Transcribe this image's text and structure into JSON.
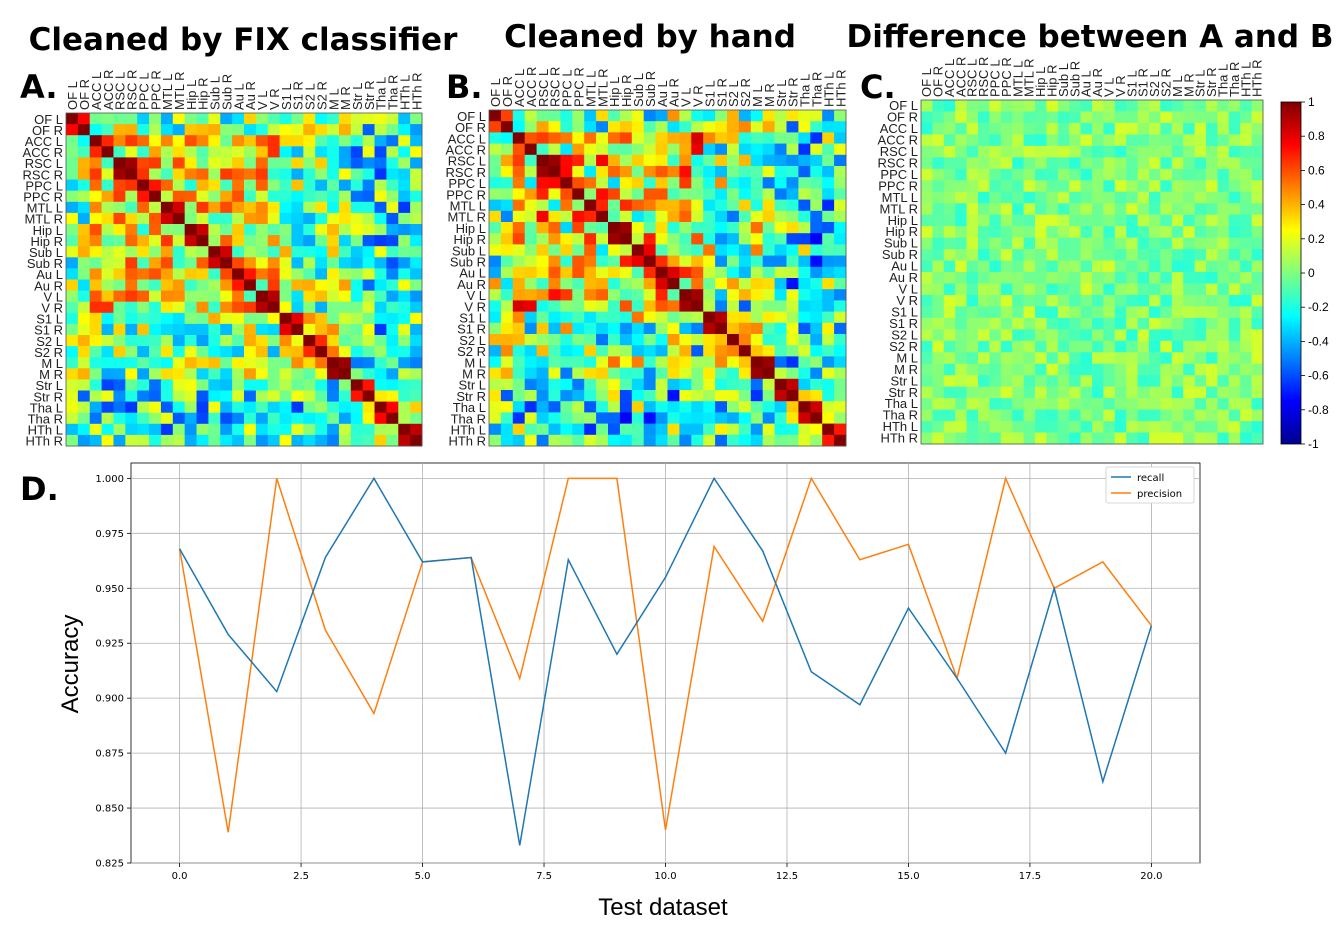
{
  "chart_data": [
    {
      "panel": "A.",
      "type": "heatmap",
      "title": "Cleaned by FIX classifier",
      "row_labels": [
        "OF L",
        "OF R",
        "ACC L",
        "ACC R",
        "RSC L",
        "RSC R",
        "PPC L",
        "PPC R",
        "MTL L",
        "MTL R",
        "Hip L",
        "Hip R",
        "Sub L",
        "Sub R",
        "Au L",
        "Au R",
        "V L",
        "V R",
        "S1 L",
        "S1 R",
        "S2 L",
        "S2 R",
        "M L",
        "M R",
        "Str L",
        "Str R",
        "Tha L",
        "Tha R",
        "HTh L",
        "HTh R"
      ],
      "col_labels": [
        "OF L",
        "OF R",
        "ACC L",
        "ACC R",
        "RSC L",
        "RSC R",
        "PPC L",
        "PPC R",
        "MTL L",
        "MTL R",
        "Hip L",
        "Hip R",
        "Sub L",
        "Sub R",
        "Au L",
        "Au R",
        "V L",
        "V R",
        "S1 L",
        "S1 R",
        "S2 L",
        "S2 R",
        "M L",
        "M R",
        "Str L",
        "Str R",
        "Tha L",
        "Tha R",
        "HTh L",
        "HTh R"
      ],
      "value_range": [
        -1,
        1
      ],
      "colormap": "jet"
    },
    {
      "panel": "B.",
      "type": "heatmap",
      "title": "Cleaned by hand",
      "row_labels": [
        "OF L",
        "OF R",
        "ACC L",
        "ACC R",
        "RSC L",
        "RSC R",
        "PPC L",
        "PPC R",
        "MTL L",
        "MTL R",
        "Hip L",
        "Hip R",
        "Sub L",
        "Sub R",
        "Au L",
        "Au R",
        "V L",
        "V R",
        "S1 L",
        "S1 R",
        "S2 L",
        "S2 R",
        "M L",
        "M R",
        "Str L",
        "Str R",
        "Tha L",
        "Tha R",
        "HTh L",
        "HTh R"
      ],
      "col_labels": [
        "OF L",
        "OF R",
        "ACC L",
        "ACC R",
        "RSC L",
        "RSC R",
        "PPC L",
        "PPC R",
        "MTL L",
        "MTL R",
        "Hip L",
        "Hip R",
        "Sub L",
        "Sub R",
        "Au L",
        "Au R",
        "V L",
        "V R",
        "S1 L",
        "S1 R",
        "S2 L",
        "S2 R",
        "M L",
        "M R",
        "Str L",
        "Str R",
        "Tha L",
        "Tha R",
        "HTh L",
        "HTh R"
      ],
      "value_range": [
        -1,
        1
      ],
      "colormap": "jet"
    },
    {
      "panel": "C.",
      "type": "heatmap",
      "title": "Difference between A and B",
      "row_labels": [
        "OF L",
        "OF R",
        "ACC L",
        "ACC R",
        "RSC L",
        "RSC R",
        "PPC L",
        "PPC R",
        "MTL L",
        "MTL R",
        "Hip L",
        "Hip R",
        "Sub L",
        "Sub R",
        "Au L",
        "Au R",
        "V L",
        "V R",
        "S1 L",
        "S1 R",
        "S2 L",
        "S2 R",
        "M L",
        "M R",
        "Str L",
        "Str R",
        "Tha L",
        "Tha R",
        "HTh L",
        "HTh R"
      ],
      "col_labels": [
        "OF L",
        "OF R",
        "ACC L",
        "ACC R",
        "RSC L",
        "RSC R",
        "PPC L",
        "PPC R",
        "MTL L",
        "MTL R",
        "Hip L",
        "Hip R",
        "Sub L",
        "Sub R",
        "Au L",
        "Au R",
        "V L",
        "V R",
        "S1 L",
        "S1 R",
        "S2 L",
        "S2 R",
        "M L",
        "M R",
        "Str L",
        "Str R",
        "Tha L",
        "Tha R",
        "HTh L",
        "HTh R"
      ],
      "value_range": [
        -1,
        1
      ],
      "colormap": "jet",
      "colorbar_ticks": [
        "1",
        "0.8",
        "0.6",
        "0.4",
        "0.2",
        "0",
        "-0.2",
        "-0.4",
        "-0.6",
        "-0.8",
        "-1"
      ]
    },
    {
      "panel": "D.",
      "type": "line",
      "title": "",
      "xlabel": "Test dataset",
      "ylabel": "Accuracy",
      "xlim": [
        -1,
        21
      ],
      "ylim": [
        0.825,
        1.007
      ],
      "xticks": [
        0.0,
        2.5,
        5.0,
        7.5,
        10.0,
        12.5,
        15.0,
        17.5,
        20.0
      ],
      "xtick_labels": [
        "0.0",
        "2.5",
        "5.0",
        "7.5",
        "10.0",
        "12.5",
        "15.0",
        "17.5",
        "20.0"
      ],
      "yticks": [
        0.825,
        0.85,
        0.875,
        0.9,
        0.925,
        0.95,
        0.975,
        1.0
      ],
      "ytick_labels": [
        "0.825",
        "0.850",
        "0.875",
        "0.900",
        "0.925",
        "0.950",
        "0.975",
        "1.000"
      ],
      "grid": true,
      "legend_position": "top-right",
      "x": [
        0,
        1,
        2,
        3,
        4,
        5,
        6,
        7,
        8,
        9,
        10,
        11,
        12,
        13,
        14,
        15,
        16,
        17,
        18,
        19,
        20
      ],
      "series": [
        {
          "name": "recall",
          "color": "#1f77b4",
          "values": [
            0.968,
            0.929,
            0.903,
            0.964,
            1.0,
            0.962,
            0.964,
            0.833,
            0.963,
            0.92,
            0.955,
            1.0,
            0.967,
            0.912,
            0.897,
            0.941,
            0.909,
            0.875,
            0.95,
            0.862,
            0.933
          ]
        },
        {
          "name": "precision",
          "color": "#ff7f0e",
          "values": [
            0.968,
            0.839,
            1.0,
            0.931,
            0.893,
            0.962,
            0.964,
            0.909,
            1.0,
            1.0,
            0.84,
            0.969,
            0.935,
            1.0,
            0.963,
            0.97,
            0.909,
            1.0,
            0.95,
            0.962,
            0.933
          ]
        }
      ]
    }
  ]
}
